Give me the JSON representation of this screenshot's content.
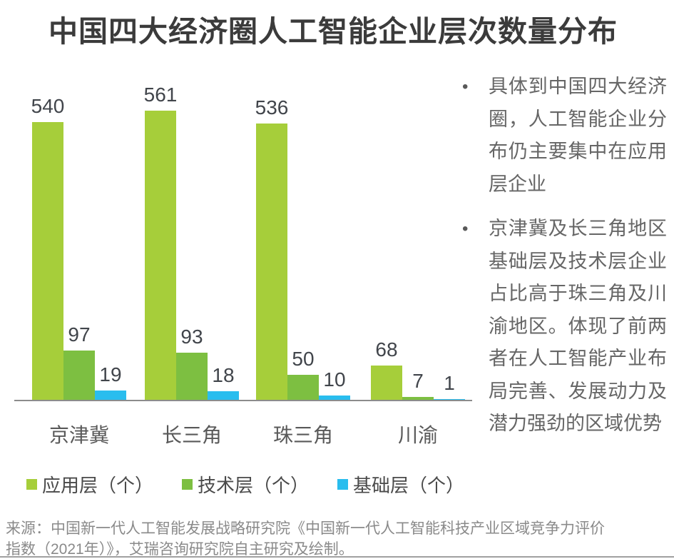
{
  "title": "中国四大经济圈人工智能企业层次数量分布",
  "chart_data": {
    "type": "bar",
    "categories": [
      "京津冀",
      "长三角",
      "珠三角",
      "川渝"
    ],
    "series": [
      {
        "name": "应用层（个）",
        "color": "#a6ce3a",
        "values": [
          540,
          561,
          536,
          68
        ]
      },
      {
        "name": "技术层（个）",
        "color": "#7dbf41",
        "values": [
          97,
          93,
          50,
          7
        ]
      },
      {
        "name": "基础层（个）",
        "color": "#29bdee",
        "values": [
          19,
          18,
          10,
          1
        ]
      }
    ],
    "title": "中国四大经济圈人工智能企业层次数量分布",
    "xlabel": "",
    "ylabel": "",
    "ylim": [
      0,
      600
    ],
    "grid": false,
    "legend_position": "bottom",
    "value_labels": true,
    "axis_color": "#8c8c8c",
    "value_label_color": "#41454b"
  },
  "notes": {
    "bullets": [
      "具体到中国四大经济圈，人工智能企业分布仍主要集中在应用层企业",
      "京津冀及长三角地区基础层及技术层企业占比高于珠三角及川渝地区。体现了前两者在人工智能产业布局完善、发展动力及潜力强劲的区域优势"
    ],
    "bullet_glyph": "•"
  },
  "source": {
    "text": "来源：中国新一代人工智能发展战略研究院《中国新一代人工智能科技产业区域竞争力评价指数（2021年）》，艾瑞咨询研究院自主研究及绘制。"
  },
  "colors": {
    "title": "#3b3b3b",
    "x_label": "#595959",
    "legend_text": "#4a4a4a",
    "notes_text": "#666666",
    "source_text": "#8a8a8a"
  }
}
